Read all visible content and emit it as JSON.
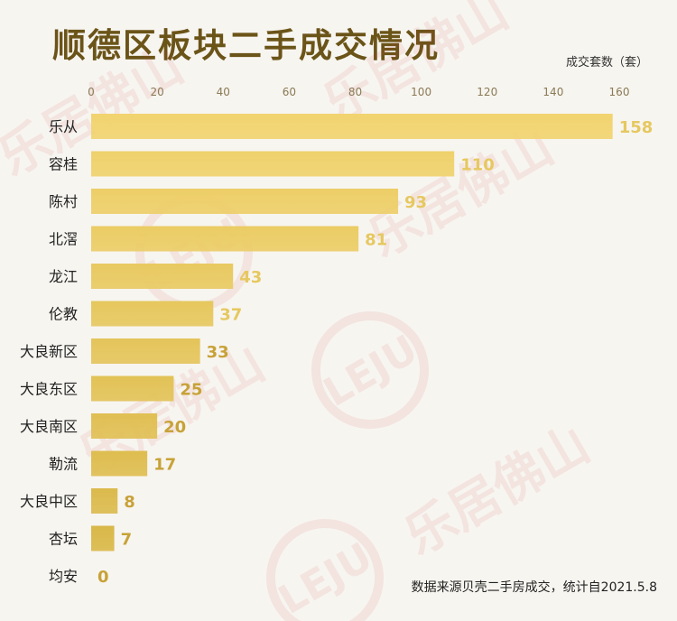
{
  "title": "顺德区板块二手成交情况",
  "unit_label": "成交套数（套）",
  "source_note": "数据来源贝壳二手房成交，统计自2021.5.8",
  "watermark": "乐居佛山",
  "watermark_logo": "LEJU",
  "colors": {
    "bar_light": "#f1d36e",
    "bar_dark": "#d7b545",
    "value_light": "#e6c860",
    "value_dark": "#c8a238",
    "title": "#6b5418",
    "background": "#f7f5f0"
  },
  "chart_data": {
    "type": "bar",
    "orientation": "horizontal",
    "title": "顺德区板块二手成交情况",
    "xlabel": "成交套数（套）",
    "ylabel": "",
    "xlim": [
      0,
      160
    ],
    "xticks": [
      0,
      20,
      40,
      60,
      80,
      100,
      120,
      140,
      160
    ],
    "grid": false,
    "categories": [
      "乐从",
      "容桂",
      "陈村",
      "北滘",
      "龙江",
      "伦教",
      "大良新区",
      "大良东区",
      "大良南区",
      "勒流",
      "大良中区",
      "杏坛",
      "均安"
    ],
    "values": [
      158,
      110,
      93,
      81,
      43,
      37,
      33,
      25,
      20,
      17,
      8,
      7,
      0
    ]
  }
}
